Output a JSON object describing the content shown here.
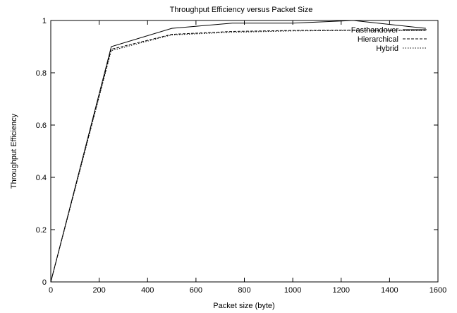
{
  "chart_data": {
    "type": "line",
    "title": "Throughput Efficiency versus Packet Size",
    "xlabel": "Packet size (byte)",
    "ylabel": "Throughput Efficiency",
    "xlim": [
      0,
      1600
    ],
    "ylim": [
      0,
      1
    ],
    "xticks": [
      "0",
      "200",
      "400",
      "600",
      "800",
      "1000",
      "1200",
      "1400",
      "1600"
    ],
    "yticks": [
      "0",
      "0.2",
      "0.4",
      "0.6",
      "0.8",
      "1"
    ],
    "grid": false,
    "legend_position": "top-right",
    "series": [
      {
        "name": "Fasthandover",
        "style": "solid",
        "x": [
          0,
          250,
          500,
          750,
          1000,
          1250,
          1550
        ],
        "y": [
          0,
          0.9,
          0.97,
          0.99,
          0.99,
          1.0,
          0.97
        ]
      },
      {
        "name": "Hierarchical",
        "style": "dashed",
        "x": [
          0,
          250,
          500,
          750,
          1000,
          1250,
          1550
        ],
        "y": [
          0,
          0.89,
          0.947,
          0.958,
          0.962,
          0.963,
          0.963
        ]
      },
      {
        "name": "Hybrid",
        "style": "dotted",
        "x": [
          0,
          250,
          500,
          750,
          1000,
          1250,
          1550
        ],
        "y": [
          0,
          0.885,
          0.945,
          0.955,
          0.96,
          0.962,
          0.962
        ]
      }
    ]
  }
}
